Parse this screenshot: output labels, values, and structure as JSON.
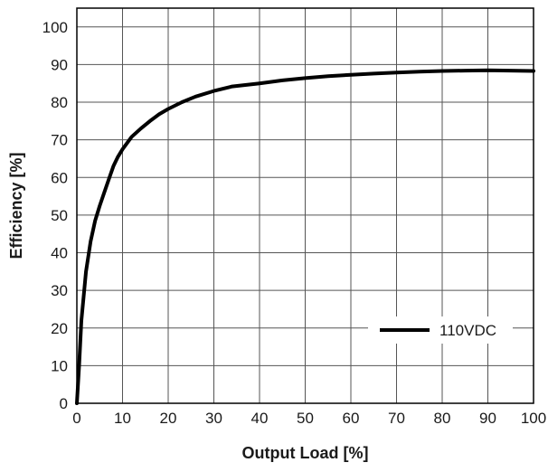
{
  "chart_data": {
    "type": "line",
    "title": "",
    "xlabel": "Output Load [%]",
    "ylabel": "Efficiency [%]",
    "xlim": [
      0,
      100
    ],
    "ylim": [
      0,
      105
    ],
    "xticks": [
      0,
      10,
      20,
      30,
      40,
      50,
      60,
      70,
      80,
      90,
      100
    ],
    "yticks": [
      0,
      10,
      20,
      30,
      40,
      50,
      60,
      70,
      80,
      90,
      100
    ],
    "grid": true,
    "legend_position": "lower-right",
    "series": [
      {
        "name": "110VDC",
        "color": "#000000",
        "x": [
          0,
          0.5,
          1,
          2,
          3,
          4,
          5,
          6,
          7,
          8,
          9,
          10,
          12,
          14,
          16,
          18,
          20,
          23,
          26,
          30,
          34,
          40,
          45,
          50,
          55,
          60,
          65,
          70,
          75,
          80,
          85,
          90,
          95,
          100
        ],
        "y": [
          0,
          10,
          22,
          35,
          43,
          48.5,
          52.5,
          56,
          59.5,
          63,
          65.5,
          67.5,
          70.8,
          73,
          75,
          76.8,
          78.2,
          80,
          81.5,
          83,
          84.2,
          85,
          85.8,
          86.4,
          86.9,
          87.3,
          87.6,
          87.9,
          88.1,
          88.3,
          88.4,
          88.5,
          88.4,
          88.3
        ]
      }
    ]
  }
}
